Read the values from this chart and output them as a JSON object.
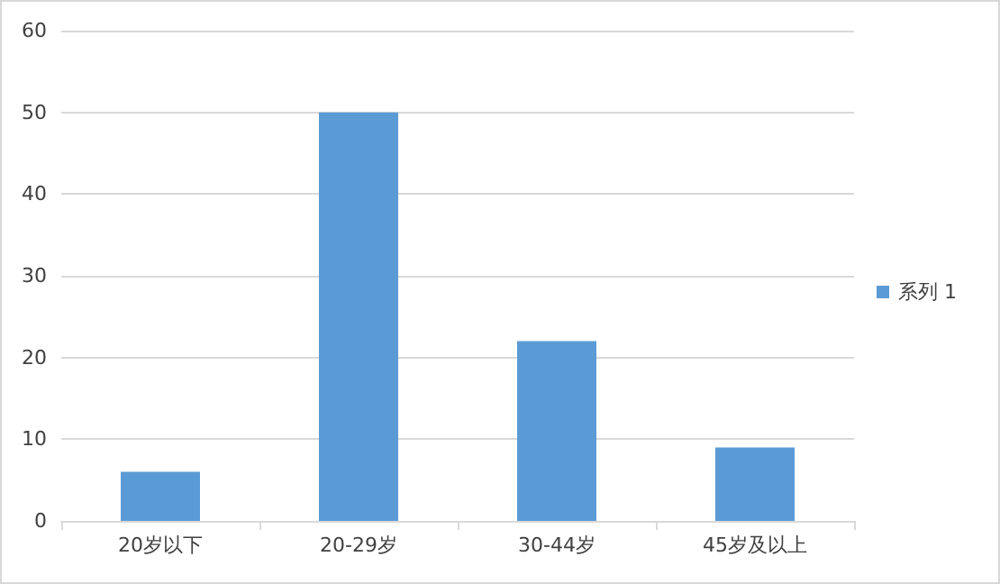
{
  "chart_data": {
    "type": "bar",
    "categories": [
      "20岁以下",
      "20-29岁",
      "30-44岁",
      "45岁及以上"
    ],
    "series": [
      {
        "name": "系列 1",
        "color": "#5b9bd5",
        "values": [
          6,
          50,
          22,
          9
        ]
      }
    ],
    "ylim": [
      0,
      60
    ],
    "yticks": [
      0,
      10,
      20,
      30,
      40,
      50,
      60
    ],
    "grid": "y",
    "legend": "right"
  }
}
